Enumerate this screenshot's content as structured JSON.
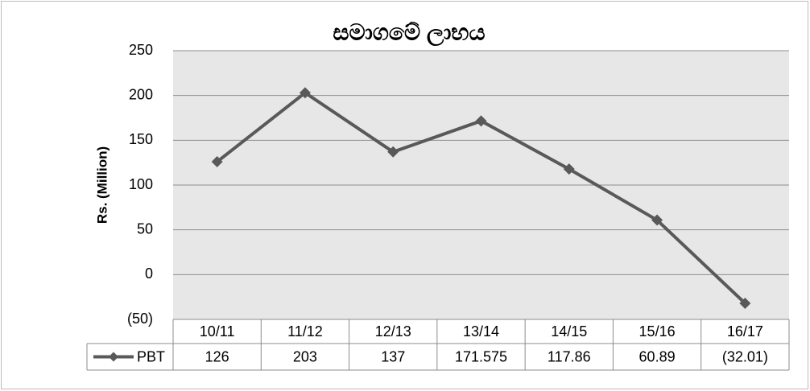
{
  "chart_data": {
    "type": "line",
    "title": "සමාගමේ ලාභය",
    "y_axis_label": "Rs. (Million)",
    "categories": [
      "10/11",
      "11/12",
      "12/13",
      "13/14",
      "14/15",
      "15/16",
      "16/17"
    ],
    "series": [
      {
        "name": "PBT",
        "color": "#595959",
        "values": [
          126,
          203,
          137,
          171.575,
          117.86,
          60.89,
          -32.01
        ],
        "value_labels": [
          "126",
          "203",
          "137",
          "171.575",
          "117.86",
          "60.89",
          "(32.01)"
        ]
      }
    ],
    "ylim": [
      -50,
      250
    ],
    "yticks": [
      {
        "value": -50,
        "label": "(50)"
      },
      0,
      50,
      100,
      150,
      200,
      250
    ],
    "grid": true
  }
}
